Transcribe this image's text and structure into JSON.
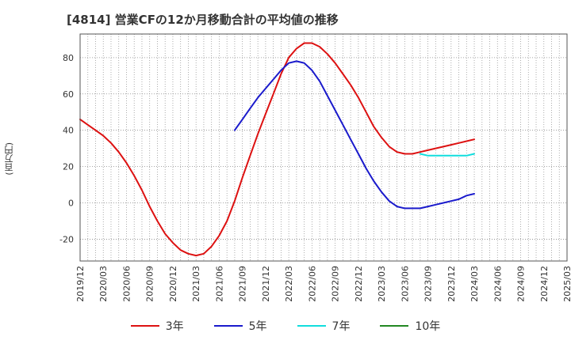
{
  "chart_data": {
    "type": "line",
    "title": "[4814]  営業CFの12か月移動合計の平均値の推移",
    "ylabel": "(百万円)",
    "xlabel": "",
    "ylim": [
      -32,
      93
    ],
    "yticks": [
      -20,
      0,
      20,
      40,
      60,
      80
    ],
    "xlim": [
      "2019-12",
      "2025-03"
    ],
    "xticks": [
      "2019/12",
      "2020/03",
      "2020/06",
      "2020/09",
      "2020/12",
      "2021/03",
      "2021/06",
      "2021/09",
      "2021/12",
      "2022/03",
      "2022/06",
      "2022/09",
      "2022/12",
      "2023/03",
      "2023/06",
      "2023/09",
      "2023/12",
      "2024/03",
      "2024/06",
      "2024/09",
      "2024/12",
      "2025/03"
    ],
    "grid": true,
    "legend_position": "bottom",
    "series": [
      {
        "name": "3年",
        "color": "#dd1111",
        "x": [
          "2019-12",
          "2020-01",
          "2020-02",
          "2020-03",
          "2020-04",
          "2020-05",
          "2020-06",
          "2020-07",
          "2020-08",
          "2020-09",
          "2020-10",
          "2020-11",
          "2020-12",
          "2021-01",
          "2021-02",
          "2021-03",
          "2021-04",
          "2021-05",
          "2021-06",
          "2021-07",
          "2021-08",
          "2021-09",
          "2021-10",
          "2021-11",
          "2021-12",
          "2022-01",
          "2022-02",
          "2022-03",
          "2022-04",
          "2022-05",
          "2022-06",
          "2022-07",
          "2022-08",
          "2022-09",
          "2022-10",
          "2022-11",
          "2022-12",
          "2023-01",
          "2023-02",
          "2023-03",
          "2023-04",
          "2023-05",
          "2023-06",
          "2023-07",
          "2023-08",
          "2023-09",
          "2023-10",
          "2023-11",
          "2023-12",
          "2024-01",
          "2024-02",
          "2024-03"
        ],
        "y": [
          46,
          43,
          40,
          37,
          33,
          28,
          22,
          15,
          7,
          -2,
          -10,
          -17,
          -22,
          -26,
          -28,
          -29,
          -28,
          -24,
          -18,
          -10,
          1,
          14,
          26,
          38,
          49,
          60,
          71,
          80,
          85,
          88,
          88,
          86,
          82,
          77,
          71,
          65,
          58,
          50,
          42,
          36,
          31,
          28,
          27,
          27,
          28,
          29,
          30,
          31,
          32,
          33,
          34,
          35
        ]
      },
      {
        "name": "5年",
        "color": "#1a1acc",
        "x": [
          "2021-08",
          "2021-09",
          "2021-10",
          "2021-11",
          "2021-12",
          "2022-01",
          "2022-02",
          "2022-03",
          "2022-04",
          "2022-05",
          "2022-06",
          "2022-07",
          "2022-08",
          "2022-09",
          "2022-10",
          "2022-11",
          "2022-12",
          "2023-01",
          "2023-02",
          "2023-03",
          "2023-04",
          "2023-05",
          "2023-06",
          "2023-07",
          "2023-08",
          "2023-09",
          "2023-10",
          "2023-11",
          "2023-12",
          "2024-01",
          "2024-02",
          "2024-03"
        ],
        "y": [
          40,
          46,
          52,
          58,
          63,
          68,
          73,
          77,
          78,
          77,
          73,
          67,
          59,
          51,
          43,
          35,
          27,
          19,
          12,
          6,
          1,
          -2,
          -3,
          -3,
          -3,
          -2,
          -1,
          0,
          1,
          2,
          4,
          5
        ]
      },
      {
        "name": "7年",
        "color": "#11dddd",
        "x": [
          "2023-08",
          "2023-09",
          "2023-10",
          "2023-11",
          "2023-12",
          "2024-01",
          "2024-02",
          "2024-03"
        ],
        "y": [
          27,
          26,
          26,
          26,
          26,
          26,
          26,
          27
        ]
      },
      {
        "name": "10年",
        "color": "#228822",
        "x": [],
        "y": []
      }
    ]
  }
}
